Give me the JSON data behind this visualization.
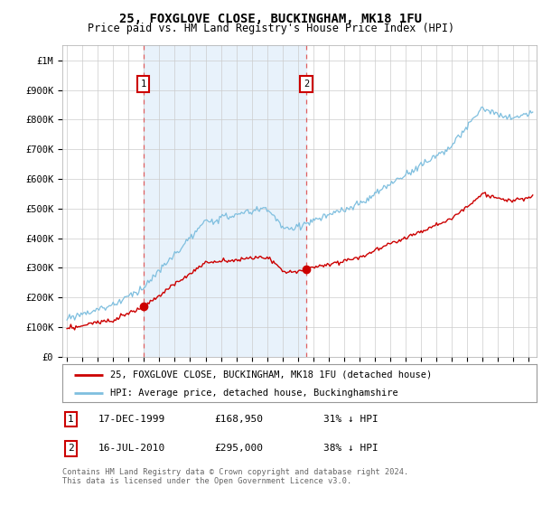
{
  "title": "25, FOXGLOVE CLOSE, BUCKINGHAM, MK18 1FU",
  "subtitle": "Price paid vs. HM Land Registry's House Price Index (HPI)",
  "footer": "Contains HM Land Registry data © Crown copyright and database right 2024.\nThis data is licensed under the Open Government Licence v3.0.",
  "legend_line1": "25, FOXGLOVE CLOSE, BUCKINGHAM, MK18 1FU (detached house)",
  "legend_line2": "HPI: Average price, detached house, Buckinghamshire",
  "transaction1_date": "17-DEC-1999",
  "transaction1_price": "£168,950",
  "transaction1_hpi": "31% ↓ HPI",
  "transaction2_date": "16-JUL-2010",
  "transaction2_price": "£295,000",
  "transaction2_hpi": "38% ↓ HPI",
  "hpi_color": "#7fbfdf",
  "price_color": "#cc0000",
  "shade_color": "#e8f2fb",
  "dashed_color": "#e06060",
  "bg_color": "#ffffff",
  "grid_color": "#cccccc",
  "ylim_max": 1050000,
  "yticks": [
    0,
    100000,
    200000,
    300000,
    400000,
    500000,
    600000,
    700000,
    800000,
    900000,
    1000000
  ],
  "ytick_labels": [
    "£0",
    "£100K",
    "£200K",
    "£300K",
    "£400K",
    "£500K",
    "£600K",
    "£700K",
    "£800K",
    "£900K",
    "£1M"
  ],
  "xlim_start": 1994.7,
  "xlim_end": 2025.5,
  "transaction1_x": 1999.96,
  "transaction1_y": 168950,
  "transaction2_x": 2010.54,
  "transaction2_y": 295000
}
